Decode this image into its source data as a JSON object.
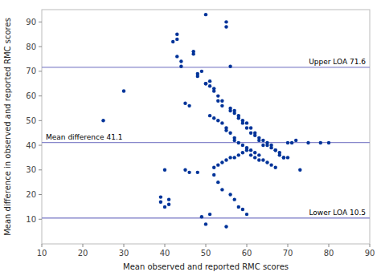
{
  "chart_data": {
    "type": "scatter",
    "xlabel": "Mean observed and reported RMC scores",
    "ylabel": "Mean difference in observed and reported RMC scores",
    "xlim": [
      10,
      90
    ],
    "ylim": [
      0,
      95
    ],
    "xticks": [
      10,
      20,
      30,
      40,
      50,
      60,
      70,
      80,
      90
    ],
    "yticks": [
      10,
      20,
      30,
      40,
      50,
      60,
      70,
      80,
      90
    ],
    "grid": false,
    "x": [
      25,
      30,
      39,
      39,
      40,
      40,
      41,
      41,
      42,
      43,
      43,
      43,
      44,
      44,
      45,
      45,
      46,
      46,
      47,
      47,
      48,
      48,
      48,
      49,
      49,
      50,
      50,
      50,
      50,
      51,
      51,
      51,
      51,
      52,
      52,
      52,
      52,
      52,
      53,
      53,
      53,
      53,
      53,
      54,
      54,
      54,
      54,
      54,
      55,
      55,
      55,
      55,
      55,
      55,
      56,
      56,
      56,
      56,
      56,
      56,
      57,
      57,
      57,
      57,
      57,
      57,
      58,
      58,
      58,
      58,
      58,
      59,
      59,
      59,
      59,
      59,
      60,
      60,
      60,
      60,
      60,
      61,
      61,
      61,
      61,
      62,
      62,
      62,
      62,
      63,
      63,
      63,
      63,
      64,
      64,
      64,
      65,
      65,
      65,
      66,
      66,
      66,
      67,
      67,
      67,
      68,
      68,
      69,
      69,
      70,
      70,
      71,
      72,
      73,
      75,
      78,
      80
    ],
    "series": [
      {
        "color": "#003399",
        "values": [
          50,
          62,
          17,
          19,
          15,
          30,
          16,
          18,
          82,
          83,
          85,
          76,
          74,
          72,
          57,
          30,
          56,
          29,
          78,
          77,
          69,
          68,
          29,
          70,
          11,
          93,
          65,
          65,
          8,
          66,
          64,
          52,
          12,
          63,
          62,
          51,
          31,
          28,
          60,
          58,
          50,
          32,
          25,
          58,
          56,
          49,
          33,
          22,
          90,
          88,
          47,
          46,
          34,
          7,
          72,
          55,
          54,
          45,
          35,
          20,
          35,
          54,
          53,
          43,
          42,
          18,
          52,
          51,
          41,
          36,
          15,
          50,
          49,
          40,
          37,
          14,
          49,
          47,
          39,
          38,
          12,
          47,
          45,
          38,
          36,
          45,
          44,
          37,
          35,
          43,
          42,
          36,
          34,
          42,
          40,
          34,
          41,
          40,
          33,
          40,
          39,
          32,
          38,
          38,
          31,
          37,
          36,
          35,
          35,
          35,
          41,
          41,
          42,
          30,
          41,
          41,
          41
        ]
      }
    ],
    "reference_lines": [
      {
        "value": 71.6,
        "label": "Upper LOA 71.6",
        "color": "#8888cc"
      },
      {
        "value": 41.1,
        "label": "Mean difference 41.1",
        "color": "#8888cc"
      },
      {
        "value": 10.5,
        "label": "Lower LOA 10.5",
        "color": "#8888cc"
      }
    ]
  }
}
